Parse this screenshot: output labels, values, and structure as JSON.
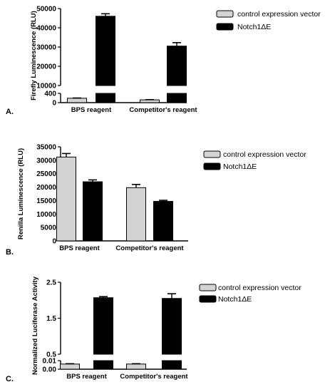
{
  "chart_data": [
    {
      "type": "bar",
      "panel_label": "A.",
      "ylabel": "Firefly Luminescence (RLU)",
      "axis_break": true,
      "categories": [
        "BPS reagent",
        "Competitor's reagent"
      ],
      "series": [
        {
          "name": "control expression vector",
          "color": "#d3d3d3",
          "values": [
            190,
            120
          ],
          "errors": [
            10,
            10
          ]
        },
        {
          "name": "Notch1ΔE",
          "color": "#000000",
          "values": [
            46000,
            30500
          ],
          "errors": [
            1300,
            1800
          ]
        }
      ],
      "segments": [
        {
          "range": [
            0,
            400
          ],
          "ticks": [
            "0",
            "400"
          ],
          "tick_values": [
            0,
            400
          ]
        },
        {
          "range": [
            10000,
            50000
          ],
          "ticks": [
            "10000",
            "20000",
            "30000",
            "40000",
            "50000"
          ],
          "tick_values": [
            10000,
            20000,
            30000,
            40000,
            50000
          ]
        }
      ],
      "legend_position": "top-right"
    },
    {
      "type": "bar",
      "panel_label": "B.",
      "ylabel": "Renilla Luminescence (RLU)",
      "axis_break": false,
      "categories": [
        "BPS reagent",
        "Competitor's reagent"
      ],
      "series": [
        {
          "name": "control expression vector",
          "color": "#d3d3d3",
          "values": [
            31200,
            19800
          ],
          "errors": [
            1300,
            1200
          ]
        },
        {
          "name": "Notch1ΔE",
          "color": "#000000",
          "values": [
            22000,
            14700
          ],
          "errors": [
            700,
            400
          ]
        }
      ],
      "ylim": [
        0,
        35000
      ],
      "ticks": [
        "0",
        "5000",
        "10000",
        "15000",
        "20000",
        "25000",
        "30000",
        "35000"
      ],
      "tick_values": [
        0,
        5000,
        10000,
        15000,
        20000,
        25000,
        30000,
        35000
      ],
      "legend_position": "top-right"
    },
    {
      "type": "bar",
      "panel_label": "C.",
      "ylabel": "Normalized Luciferase Activity",
      "axis_break": true,
      "categories": [
        "BPS reagent",
        "Competitor's reagent"
      ],
      "series": [
        {
          "name": "control expression vector",
          "color": "#d3d3d3",
          "values": [
            0.006,
            0.006
          ],
          "errors": [
            0.0004,
            0.0004
          ]
        },
        {
          "name": "Notch1ΔE",
          "color": "#000000",
          "values": [
            2.07,
            2.05
          ],
          "errors": [
            0.03,
            0.13
          ]
        }
      ],
      "segments": [
        {
          "range": [
            0,
            0.01
          ],
          "ticks": [
            "0.00",
            "0.01"
          ],
          "tick_values": [
            0,
            0.01
          ]
        },
        {
          "range": [
            0.5,
            2.5
          ],
          "ticks": [
            "0.5",
            "1.5",
            "2.5"
          ],
          "tick_values": [
            0.5,
            1.5,
            2.5
          ]
        }
      ],
      "legend_position": "top-right"
    }
  ]
}
